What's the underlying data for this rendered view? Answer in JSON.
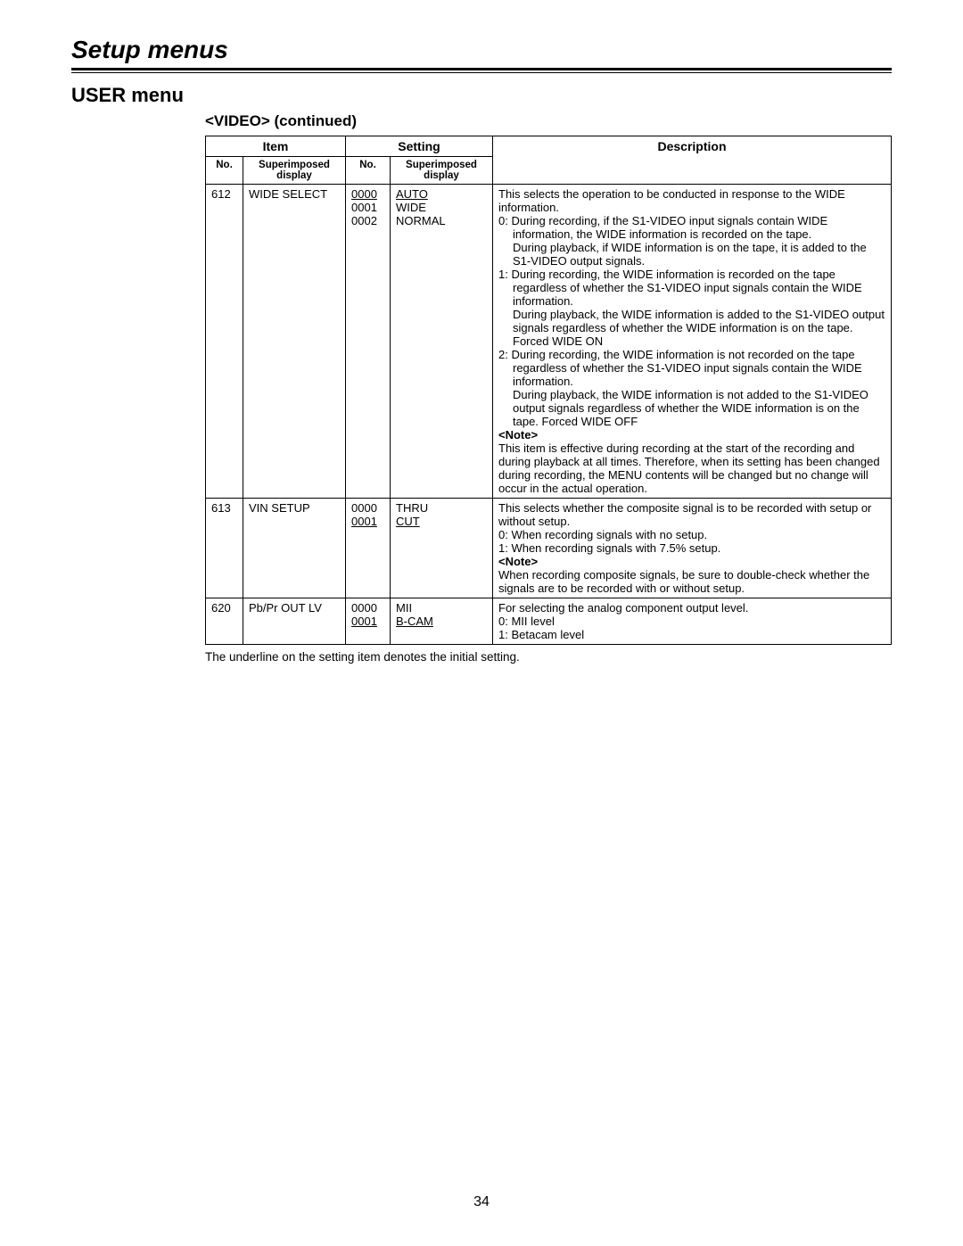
{
  "pageTitle": "Setup menus",
  "sectionTitle": "USER menu",
  "subsection": "<VIDEO> (continued)",
  "headers": {
    "itemGroup": "Item",
    "settingGroup": "Setting",
    "no": "No.",
    "superimposed": "Superimposed display",
    "description": "Description"
  },
  "rows": [
    {
      "no": "612",
      "item": "WIDE SELECT",
      "settings": [
        {
          "no": "0000",
          "label": "AUTO",
          "initial": true
        },
        {
          "no": "0001",
          "label": "WIDE",
          "initial": false
        },
        {
          "no": "0002",
          "label": "NORMAL",
          "initial": false
        }
      ],
      "desc_intro": "This selects the operation to be conducted in response to the WIDE information.",
      "desc_items": [
        "0: During recording, if the S1-VIDEO input signals contain WIDE information, the WIDE information is recorded on the tape.\nDuring playback, if WIDE information is on the tape, it is added to the S1-VIDEO output signals.",
        "1: During recording, the WIDE information is recorded on the tape regardless of whether the S1-VIDEO input signals contain the WIDE information.\nDuring playback, the WIDE information is added to the S1-VIDEO output signals regardless of whether the WIDE information is on the tape.     Forced WIDE ON",
        "2: During recording, the WIDE information is not recorded on the tape regardless of whether the S1-VIDEO input signals contain the WIDE information.\nDuring playback, the WIDE information is not added to the S1-VIDEO output signals regardless of whether the WIDE information is on the tape.     Forced WIDE OFF"
      ],
      "note_label": "<Note>",
      "note_body": "This item is effective during recording at the start of the recording and during playback at all times. Therefore, when its setting has been changed during recording, the MENU contents will be changed but no change will occur in the actual operation."
    },
    {
      "no": "613",
      "item": "VIN SETUP",
      "settings": [
        {
          "no": "0000",
          "label": "THRU",
          "initial": false
        },
        {
          "no": "0001",
          "label": "CUT",
          "initial": true
        }
      ],
      "desc_intro": "This selects whether the composite signal is to be recorded with setup or without setup.",
      "desc_items": [
        "0: When recording signals with no setup.",
        "1: When recording signals with 7.5% setup."
      ],
      "note_label": "<Note>",
      "note_body": "When recording composite signals, be sure to double-check whether the signals are to be recorded with or without setup."
    },
    {
      "no": "620",
      "item": "Pb/Pr OUT LV",
      "settings": [
        {
          "no": "0000",
          "label": "MII",
          "initial": false
        },
        {
          "no": "0001",
          "label": "B-CAM",
          "initial": true
        }
      ],
      "desc_intro": "For selecting the analog component output level.",
      "desc_items": [
        "0: MII level",
        "1: Betacam level"
      ],
      "note_label": "",
      "note_body": ""
    }
  ],
  "footerNote": "The underline on the setting item denotes the initial setting.",
  "pageNumber": "34"
}
